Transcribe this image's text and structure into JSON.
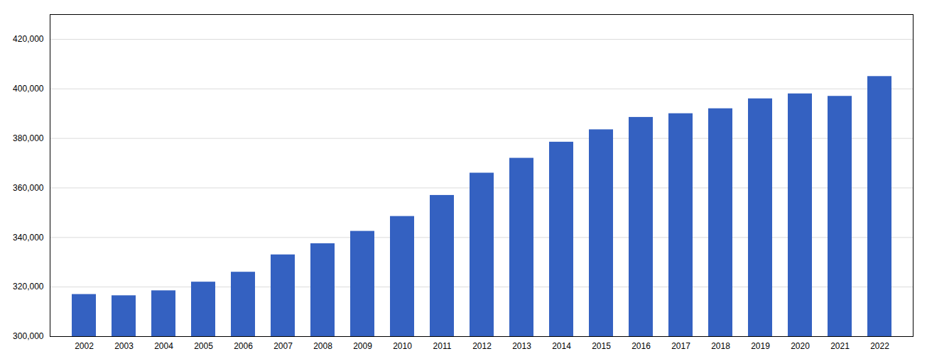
{
  "chart_data": {
    "type": "bar",
    "categories": [
      "2002",
      "2003",
      "2004",
      "2005",
      "2006",
      "2007",
      "2008",
      "2009",
      "2010",
      "2011",
      "2012",
      "2013",
      "2014",
      "2015",
      "2016",
      "2017",
      "2018",
      "2019",
      "2020",
      "2021",
      "2022"
    ],
    "values": [
      317000,
      316500,
      318500,
      322000,
      326000,
      333000,
      337500,
      342500,
      348500,
      357000,
      366000,
      372000,
      378500,
      383500,
      388500,
      390000,
      392000,
      396000,
      398000,
      397000,
      405000
    ],
    "color": "#3461c1",
    "ylim": [
      300000,
      430000
    ],
    "yticks": [
      {
        "value": 300000,
        "label": "300,000"
      },
      {
        "value": 320000,
        "label": "320,000"
      },
      {
        "value": 340000,
        "label": "340,000"
      },
      {
        "value": 360000,
        "label": "360,000"
      },
      {
        "value": 380000,
        "label": "380,000"
      },
      {
        "value": 400000,
        "label": "400,000"
      },
      {
        "value": 420000,
        "label": "420,000"
      }
    ],
    "grid": true
  }
}
